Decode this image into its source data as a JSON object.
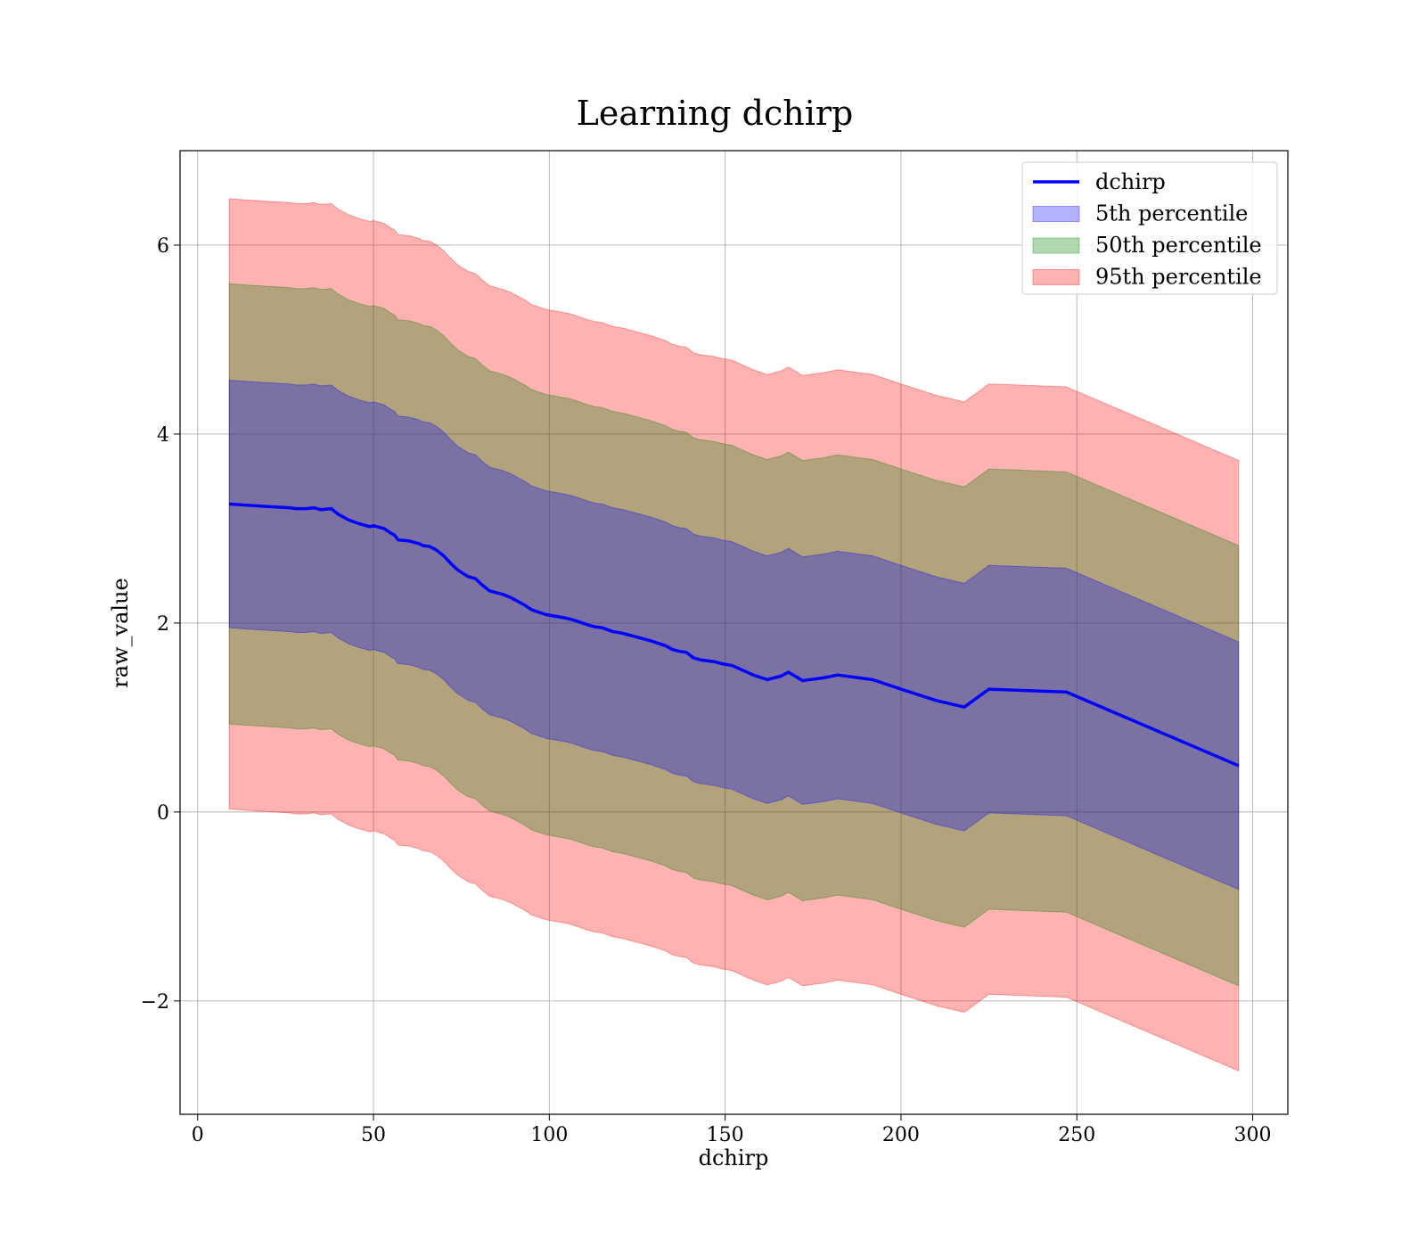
{
  "chart_data": {
    "type": "area",
    "title": "Learning dchirp",
    "xlabel": "dchirp",
    "ylabel": "raw_value",
    "xlim": [
      -5,
      310
    ],
    "ylim": [
      -3.2,
      7.0
    ],
    "xticks": [
      0,
      50,
      100,
      150,
      200,
      250,
      300
    ],
    "yticks": [
      -2,
      0,
      2,
      4,
      6
    ],
    "xtick_labels": [
      "0",
      "50",
      "100",
      "150",
      "200",
      "250",
      "300"
    ],
    "ytick_labels": [
      "−2",
      "0",
      "2",
      "4",
      "6"
    ],
    "grid": true,
    "legend_position": "top-right",
    "legend": [
      {
        "label": "dchirp",
        "kind": "line",
        "color": "#0000ff"
      },
      {
        "label": "5th percentile",
        "kind": "patch",
        "color": "#0000ff"
      },
      {
        "label": "50th percentile",
        "kind": "patch",
        "color": "#008000"
      },
      {
        "label": "95th percentile",
        "kind": "patch",
        "color": "#ff0000"
      }
    ],
    "x": [
      9,
      17,
      26,
      28,
      31,
      33,
      35,
      38,
      40,
      43,
      46,
      49,
      50,
      53,
      55,
      56,
      57,
      60,
      63,
      64,
      66,
      68,
      70,
      72,
      74,
      77,
      79,
      81,
      83,
      87,
      89,
      91,
      93,
      95,
      99,
      105,
      107,
      111,
      113,
      115,
      118,
      121,
      123,
      126,
      129,
      133,
      135,
      137,
      139,
      141,
      143,
      147,
      149,
      152,
      158,
      162,
      166,
      168,
      172,
      178,
      182,
      192,
      200,
      210,
      218,
      225,
      247,
      296
    ],
    "series": [
      {
        "name": "dchirp",
        "values": [
          3.26,
          3.24,
          3.22,
          3.21,
          3.21,
          3.22,
          3.2,
          3.21,
          3.15,
          3.09,
          3.05,
          3.02,
          3.03,
          3.0,
          2.95,
          2.93,
          2.88,
          2.87,
          2.84,
          2.82,
          2.81,
          2.77,
          2.71,
          2.63,
          2.56,
          2.49,
          2.47,
          2.4,
          2.34,
          2.3,
          2.27,
          2.23,
          2.19,
          2.14,
          2.09,
          2.05,
          2.03,
          1.98,
          1.96,
          1.95,
          1.91,
          1.89,
          1.87,
          1.84,
          1.81,
          1.76,
          1.72,
          1.7,
          1.69,
          1.63,
          1.61,
          1.59,
          1.57,
          1.55,
          1.45,
          1.4,
          1.44,
          1.48,
          1.39,
          1.42,
          1.45,
          1.4,
          1.3,
          1.18,
          1.11,
          1.3,
          1.27,
          0.49
        ]
      }
    ],
    "bands": [
      {
        "name": "95th percentile",
        "color": "#ff0000",
        "opacity": 0.3,
        "offset": 3.23
      },
      {
        "name": "50th percentile",
        "color": "#008000",
        "opacity": 0.3,
        "offset": 2.33
      },
      {
        "name": "5th percentile",
        "color": "#0000ff",
        "opacity": 0.3,
        "offset": 1.31
      }
    ]
  }
}
